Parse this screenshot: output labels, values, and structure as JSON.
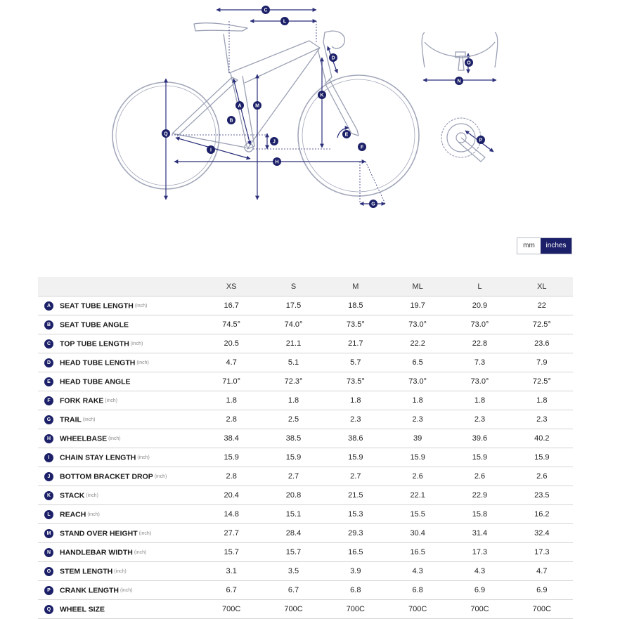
{
  "diagram": {
    "markers": [
      "A",
      "B",
      "C",
      "D",
      "E",
      "F",
      "G",
      "H",
      "I",
      "J",
      "K",
      "L",
      "M",
      "N",
      "O",
      "P",
      "Q"
    ]
  },
  "units": {
    "mm_label": "mm",
    "inches_label": "inches",
    "active": "inches"
  },
  "table": {
    "sizes": [
      "XS",
      "S",
      "M",
      "ML",
      "L",
      "XL"
    ],
    "rows": [
      {
        "letter": "A",
        "name": "SEAT TUBE LENGTH",
        "unit": "(inch)",
        "values": [
          "16.7",
          "17.5",
          "18.5",
          "19.7",
          "20.9",
          "22"
        ]
      },
      {
        "letter": "B",
        "name": "SEAT TUBE ANGLE",
        "unit": "",
        "values": [
          "74.5°",
          "74.0°",
          "73.5°",
          "73.0°",
          "73.0°",
          "72.5°"
        ]
      },
      {
        "letter": "C",
        "name": "TOP TUBE LENGTH",
        "unit": "(inch)",
        "values": [
          "20.5",
          "21.1",
          "21.7",
          "22.2",
          "22.8",
          "23.6"
        ]
      },
      {
        "letter": "D",
        "name": "HEAD TUBE LENGTH",
        "unit": "(inch)",
        "values": [
          "4.7",
          "5.1",
          "5.7",
          "6.5",
          "7.3",
          "7.9"
        ]
      },
      {
        "letter": "E",
        "name": "HEAD TUBE ANGLE",
        "unit": "",
        "values": [
          "71.0°",
          "72.3°",
          "73.5°",
          "73.0°",
          "73.0°",
          "72.5°"
        ]
      },
      {
        "letter": "F",
        "name": "FORK RAKE",
        "unit": "(inch)",
        "values": [
          "1.8",
          "1.8",
          "1.8",
          "1.8",
          "1.8",
          "1.8"
        ]
      },
      {
        "letter": "G",
        "name": "TRAIL",
        "unit": "(inch)",
        "values": [
          "2.8",
          "2.5",
          "2.3",
          "2.3",
          "2.3",
          "2.3"
        ]
      },
      {
        "letter": "H",
        "name": "WHEELBASE",
        "unit": "(inch)",
        "values": [
          "38.4",
          "38.5",
          "38.6",
          "39",
          "39.6",
          "40.2"
        ]
      },
      {
        "letter": "I",
        "name": "CHAIN STAY LENGTH",
        "unit": "(inch)",
        "values": [
          "15.9",
          "15.9",
          "15.9",
          "15.9",
          "15.9",
          "15.9"
        ]
      },
      {
        "letter": "J",
        "name": "BOTTOM BRACKET DROP",
        "unit": "(inch)",
        "values": [
          "2.8",
          "2.7",
          "2.7",
          "2.6",
          "2.6",
          "2.6"
        ]
      },
      {
        "letter": "K",
        "name": "STACK",
        "unit": "(inch)",
        "values": [
          "20.4",
          "20.8",
          "21.5",
          "22.1",
          "22.9",
          "23.5"
        ]
      },
      {
        "letter": "L",
        "name": "REACH",
        "unit": "(inch)",
        "values": [
          "14.8",
          "15.1",
          "15.3",
          "15.5",
          "15.8",
          "16.2"
        ]
      },
      {
        "letter": "M",
        "name": "STAND OVER HEIGHT",
        "unit": "(inch)",
        "values": [
          "27.7",
          "28.4",
          "29.3",
          "30.4",
          "31.4",
          "32.4"
        ]
      },
      {
        "letter": "N",
        "name": "HANDLEBAR WIDTH",
        "unit": "(inch)",
        "values": [
          "15.7",
          "15.7",
          "16.5",
          "16.5",
          "17.3",
          "17.3"
        ]
      },
      {
        "letter": "O",
        "name": "STEM LENGTH",
        "unit": "(inch)",
        "values": [
          "3.1",
          "3.5",
          "3.9",
          "4.3",
          "4.3",
          "4.7"
        ]
      },
      {
        "letter": "P",
        "name": "CRANK LENGTH",
        "unit": "(inch)",
        "values": [
          "6.7",
          "6.7",
          "6.8",
          "6.8",
          "6.9",
          "6.9"
        ]
      },
      {
        "letter": "Q",
        "name": "WHEEL SIZE",
        "unit": "",
        "values": [
          "700C",
          "700C",
          "700C",
          "700C",
          "700C",
          "700C"
        ]
      }
    ]
  },
  "colors": {
    "accent": "#1c2068",
    "frame": "#9aa0b4",
    "dims": "#2b2f7a"
  }
}
